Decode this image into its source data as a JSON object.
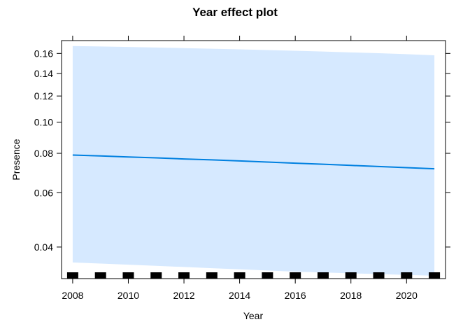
{
  "chart_data": {
    "type": "line",
    "title": "Year effect plot",
    "xlabel": "Year",
    "ylabel": "Presence",
    "xlim": [
      2007.6,
      2021.4
    ],
    "ylim": [
      0.0315,
      0.174
    ],
    "y_scale": "logit",
    "x_ticks": [
      2008,
      2010,
      2012,
      2014,
      2016,
      2018,
      2020
    ],
    "x_tick_labels": [
      "2008",
      "2010",
      "2012",
      "2014",
      "2016",
      "2018",
      "2020"
    ],
    "y_ticks": [
      0.04,
      0.06,
      0.08,
      0.1,
      0.12,
      0.14,
      0.16
    ],
    "y_tick_labels": [
      "0.04",
      "0.06",
      "0.08",
      "0.10",
      "0.12",
      "0.14",
      "0.16"
    ],
    "series": [
      {
        "x": [
          2008,
          2009,
          2010,
          2011,
          2012,
          2013,
          2014,
          2015,
          2016,
          2017,
          2018,
          2019,
          2020,
          2021
        ],
        "values": [
          0.079,
          0.0785,
          0.0779,
          0.0774,
          0.0768,
          0.0763,
          0.0757,
          0.0751,
          0.0745,
          0.0739,
          0.0733,
          0.0727,
          0.0721,
          0.0715
        ],
        "lower": [
          0.0356,
          0.0353,
          0.035,
          0.0347,
          0.0344,
          0.0341,
          0.0338,
          0.0335,
          0.0332,
          0.033,
          0.0328,
          0.0326,
          0.0324,
          0.0322
        ],
        "upper": [
          0.168,
          0.1675,
          0.1669,
          0.1663,
          0.1657,
          0.165,
          0.1643,
          0.1636,
          0.1628,
          0.162,
          0.1611,
          0.1602,
          0.1592,
          0.158
        ]
      }
    ],
    "rug": [
      2008,
      2009,
      2010,
      2011,
      2012,
      2013,
      2014,
      2015,
      2016,
      2017,
      2018,
      2019,
      2020,
      2021
    ],
    "colors": {
      "line": "#0080e0",
      "band": "#d6e9ff",
      "rug": "#000000"
    },
    "grid": false,
    "legend": "none"
  }
}
